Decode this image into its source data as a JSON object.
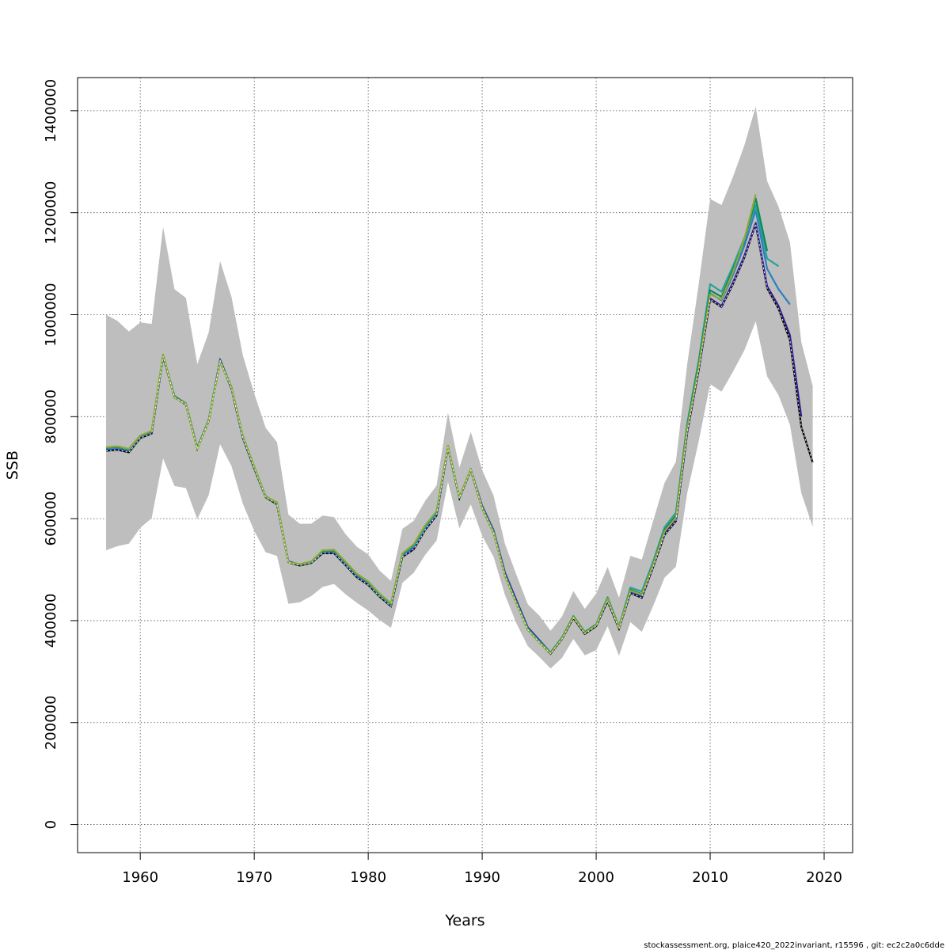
{
  "chart_data": {
    "type": "line",
    "xlabel": "Years",
    "ylabel": "SSB",
    "xlim": [
      1954.5,
      2022.5
    ],
    "ylim": [
      -55000,
      1465000
    ],
    "x_ticks": [
      1960,
      1970,
      1980,
      1990,
      2000,
      2010,
      2020
    ],
    "y_ticks": [
      0,
      200000,
      400000,
      600000,
      800000,
      1000000,
      1200000,
      1400000
    ],
    "x_tick_labels": [
      "1960",
      "1970",
      "1980",
      "1990",
      "2000",
      "2010",
      "2020"
    ],
    "y_tick_labels": [
      "0",
      "200000",
      "400000",
      "600000",
      "800000",
      "1000000",
      "1200000",
      "1400000"
    ],
    "grid": true,
    "colors": {
      "band": "#bebebe",
      "reference": "#000000",
      "series": [
        "#31208a",
        "#2b7fc2",
        "#27a296",
        "#0e8a55",
        "#8fa83a",
        "#1e6fa8",
        "#6ccbe6"
      ]
    },
    "band": {
      "x": [
        1957,
        1958,
        1959,
        1960,
        1961,
        1962,
        1963,
        1964,
        1965,
        1966,
        1967,
        1968,
        1969,
        1970,
        1971,
        1972,
        1973,
        1974,
        1975,
        1976,
        1977,
        1978,
        1979,
        1980,
        1981,
        1982,
        1983,
        1984,
        1985,
        1986,
        1987,
        1988,
        1989,
        1990,
        1991,
        1992,
        1993,
        1994,
        1995,
        1996,
        1997,
        1998,
        1999,
        2000,
        2001,
        2002,
        2003,
        2004,
        2005,
        2006,
        2007,
        2008,
        2009,
        2010,
        2011,
        2012,
        2013,
        2014,
        2015,
        2016,
        2017,
        2018,
        2019
      ],
      "upper": [
        1000000,
        988000,
        967000,
        985000,
        982000,
        1172000,
        1050000,
        1033000,
        903000,
        965000,
        1105000,
        1035000,
        920000,
        845000,
        778000,
        750000,
        608000,
        590000,
        590000,
        606000,
        603000,
        570000,
        545000,
        530000,
        498000,
        478000,
        580000,
        596000,
        635000,
        665000,
        808000,
        700000,
        770000,
        695000,
        645000,
        550000,
        490000,
        432000,
        410000,
        380000,
        408000,
        458000,
        423000,
        453000,
        505000,
        445000,
        527000,
        520000,
        596000,
        670000,
        712000,
        905000,
        1060000,
        1227000,
        1215000,
        1270000,
        1332000,
        1408000,
        1262000,
        1212000,
        1142000,
        946000,
        860000
      ],
      "lower": [
        538000,
        546000,
        551000,
        582000,
        601000,
        718000,
        664000,
        660000,
        599000,
        646000,
        746000,
        703000,
        629000,
        576000,
        534000,
        527000,
        433000,
        436000,
        448000,
        466000,
        472000,
        452000,
        435000,
        420000,
        401000,
        386000,
        474000,
        494000,
        529000,
        557000,
        672000,
        581000,
        628000,
        566000,
        525000,
        450000,
        395000,
        350000,
        329000,
        306000,
        327000,
        364000,
        332000,
        342000,
        389000,
        331000,
        397000,
        378000,
        429000,
        484000,
        506000,
        651000,
        752000,
        864000,
        849000,
        888000,
        930000,
        987000,
        879000,
        842000,
        784000,
        650000,
        584000
      ]
    },
    "reference": {
      "name": "",
      "x": [
        1957,
        1958,
        1959,
        1960,
        1961,
        1962,
        1963,
        1964,
        1965,
        1966,
        1967,
        1968,
        1969,
        1970,
        1971,
        1972,
        1973,
        1974,
        1975,
        1976,
        1977,
        1978,
        1979,
        1980,
        1981,
        1982,
        1983,
        1984,
        1985,
        1986,
        1987,
        1988,
        1989,
        1990,
        1991,
        1992,
        1993,
        1994,
        1995,
        1996,
        1997,
        1998,
        1999,
        2000,
        2001,
        2002,
        2003,
        2004,
        2005,
        2006,
        2007,
        2008,
        2009,
        2010,
        2011,
        2012,
        2013,
        2014,
        2015,
        2016,
        2017,
        2018,
        2019
      ],
      "values": [
        733000,
        735000,
        730000,
        758000,
        767000,
        918000,
        838000,
        824000,
        737000,
        791000,
        910000,
        855000,
        758000,
        698000,
        642000,
        628000,
        514000,
        508000,
        513000,
        532000,
        532000,
        509000,
        485000,
        470000,
        447000,
        428000,
        525000,
        540000,
        578000,
        606000,
        740000,
        640000,
        695000,
        620000,
        572000,
        489000,
        434000,
        382000,
        358000,
        335000,
        364000,
        405000,
        374000,
        389000,
        438000,
        384000,
        454000,
        445000,
        505000,
        568000,
        595000,
        770000,
        891000,
        1030000,
        1015000,
        1060000,
        1112000,
        1178000,
        1052000,
        1012000,
        950000,
        780000,
        710000
      ]
    },
    "series": [
      {
        "name": "",
        "x": [
          1957,
          1958,
          1959,
          1960,
          1961,
          1962,
          1963,
          1964,
          1965,
          1966,
          1967,
          1968,
          1969,
          1970,
          1971,
          1972,
          1973,
          1974,
          1975,
          1976,
          1977,
          1978,
          1979,
          1980,
          1981,
          1982,
          1983,
          1984,
          1985,
          1986,
          1987,
          1988,
          1989,
          1990,
          1991,
          1992,
          1993,
          1994,
          1995,
          1996,
          1997,
          1998,
          1999,
          2000,
          2001,
          2002,
          2003,
          2004,
          2005,
          2006,
          2007,
          2008,
          2009,
          2010,
          2011,
          2012,
          2013,
          2014,
          2015,
          2016,
          2017,
          2018
        ],
        "values": [
          735000,
          737000,
          732000,
          760000,
          769000,
          920000,
          840000,
          826000,
          739000,
          793000,
          912000,
          857000,
          760000,
          700000,
          644000,
          630000,
          516000,
          510000,
          515000,
          534000,
          534000,
          511000,
          487000,
          472000,
          449000,
          430000,
          527000,
          542000,
          580000,
          608000,
          742000,
          642000,
          697000,
          625000,
          577000,
          494000,
          440000,
          387000,
          362000,
          337000,
          366000,
          407000,
          376000,
          391000,
          440000,
          386000,
          456000,
          447000,
          507000,
          570000,
          597000,
          772000,
          893000,
          1032000,
          1017000,
          1063000,
          1115000,
          1180000,
          1056000,
          1017000,
          960000,
          800000
        ]
      },
      {
        "name": "",
        "x": [
          1957,
          1958,
          1959,
          1960,
          1961,
          1962,
          1963,
          1964,
          1965,
          1966,
          1967,
          1968,
          1969,
          1970,
          1971,
          1972,
          1973,
          1974,
          1975,
          1976,
          1977,
          1978,
          1979,
          1980,
          1981,
          1982,
          1983,
          1984,
          1985,
          1986,
          1987,
          1988,
          1989,
          1990,
          1991,
          1992,
          1993,
          1994,
          1995,
          1996,
          1997,
          1998,
          1999,
          2000,
          2001,
          2002,
          2003,
          2004,
          2005,
          2006,
          2007,
          2008,
          2009,
          2010,
          2011,
          2012,
          2013,
          2014,
          2015,
          2016,
          2017
        ],
        "values": [
          737000,
          739000,
          734000,
          761000,
          770000,
          920000,
          838000,
          825000,
          738000,
          793000,
          909000,
          857000,
          760000,
          700000,
          643000,
          630000,
          515000,
          510000,
          514000,
          535000,
          536000,
          513000,
          489000,
          474000,
          450000,
          431000,
          528000,
          545000,
          582000,
          610000,
          742000,
          641000,
          696000,
          623000,
          575000,
          490000,
          436000,
          385000,
          360000,
          337000,
          366000,
          407000,
          376000,
          391000,
          441000,
          386000,
          458000,
          450000,
          510000,
          576000,
          603000,
          780000,
          900000,
          1042000,
          1028000,
          1078000,
          1135000,
          1205000,
          1090000,
          1050000,
          1020000
        ]
      },
      {
        "name": "",
        "x": [
          1957,
          1958,
          1959,
          1960,
          1961,
          1962,
          1963,
          1964,
          1965,
          1966,
          1967,
          1968,
          1969,
          1970,
          1971,
          1972,
          1973,
          1974,
          1975,
          1976,
          1977,
          1978,
          1979,
          1980,
          1981,
          1982,
          1983,
          1984,
          1985,
          1986,
          1987,
          1988,
          1989,
          1990,
          1991,
          1992,
          1993,
          1994,
          1995,
          1996,
          1997,
          1998,
          1999,
          2000,
          2001,
          2002,
          2003,
          2004,
          2005,
          2006,
          2007,
          2008,
          2009,
          2010,
          2011,
          2012,
          2013,
          2014,
          2015,
          2016
        ],
        "values": [
          738000,
          740000,
          735000,
          762000,
          771000,
          921000,
          839000,
          826000,
          738000,
          794000,
          909000,
          858000,
          761000,
          701000,
          643000,
          631000,
          515000,
          510000,
          515000,
          536000,
          537000,
          514000,
          490000,
          475000,
          451000,
          432000,
          530000,
          547000,
          584000,
          612000,
          742000,
          641000,
          696000,
          622000,
          574000,
          489000,
          435000,
          384000,
          359000,
          338000,
          367000,
          409000,
          378000,
          393000,
          446000,
          388000,
          465000,
          457000,
          516000,
          583000,
          612000,
          788000,
          910000,
          1060000,
          1045000,
          1095000,
          1150000,
          1215000,
          1110000,
          1095000
        ]
      },
      {
        "name": "",
        "x": [
          1957,
          1958,
          1959,
          1960,
          1961,
          1962,
          1963,
          1964,
          1965,
          1966,
          1967,
          1968,
          1969,
          1970,
          1971,
          1972,
          1973,
          1974,
          1975,
          1976,
          1977,
          1978,
          1979,
          1980,
          1981,
          1982,
          1983,
          1984,
          1985,
          1986,
          1987,
          1988,
          1989,
          1990,
          1991,
          1992,
          1993,
          1994,
          1995,
          1996,
          1997,
          1998,
          1999,
          2000,
          2001,
          2002,
          2003,
          2004,
          2005,
          2006,
          2007,
          2008,
          2009,
          2010,
          2011,
          2012,
          2013,
          2014,
          2015
        ],
        "values": [
          739000,
          741000,
          736000,
          762000,
          771000,
          921000,
          838000,
          825000,
          737000,
          793000,
          908000,
          858000,
          761000,
          701000,
          643000,
          631000,
          514000,
          510000,
          515000,
          537000,
          538000,
          515000,
          491000,
          476000,
          452000,
          433000,
          531000,
          549000,
          586000,
          614000,
          742000,
          641000,
          696000,
          621000,
          573000,
          488000,
          434000,
          383000,
          358000,
          337000,
          366000,
          408000,
          377000,
          392000,
          444000,
          387000,
          461000,
          452000,
          512000,
          578000,
          606000,
          782000,
          905000,
          1048000,
          1035000,
          1088000,
          1145000,
          1228000,
          1125000
        ]
      },
      {
        "name": "",
        "x": [
          1957,
          1958,
          1959,
          1960,
          1961,
          1962,
          1963,
          1964,
          1965,
          1966,
          1967,
          1968,
          1969,
          1970,
          1971,
          1972,
          1973,
          1974,
          1975,
          1976,
          1977,
          1978,
          1979,
          1980,
          1981,
          1982,
          1983,
          1984,
          1985,
          1986,
          1987,
          1988,
          1989,
          1990,
          1991,
          1992,
          1993,
          1994,
          1995,
          1996,
          1997,
          1998,
          1999,
          2000,
          2001,
          2002,
          2003,
          2004,
          2005,
          2006,
          2007,
          2008,
          2009,
          2010,
          2011,
          2012,
          2013,
          2014
        ],
        "values": [
          740000,
          742000,
          737000,
          763000,
          772000,
          922000,
          837000,
          825000,
          736000,
          792000,
          907000,
          858000,
          762000,
          702000,
          643000,
          632000,
          514000,
          511000,
          516000,
          538000,
          539000,
          516000,
          492000,
          477000,
          453000,
          434000,
          532000,
          550000,
          587000,
          615000,
          743000,
          642000,
          697000,
          620000,
          572000,
          487000,
          433000,
          382000,
          357000,
          336000,
          365000,
          407000,
          376000,
          391000,
          443000,
          386000,
          459000,
          451000,
          510000,
          575000,
          602000,
          778000,
          898000,
          1040000,
          1030000,
          1083000,
          1148000,
          1236000
        ]
      }
    ]
  },
  "footer": "stockassessment.org, plaice420_2022invariant, r15596 , git: ec2c2a0c6dde"
}
